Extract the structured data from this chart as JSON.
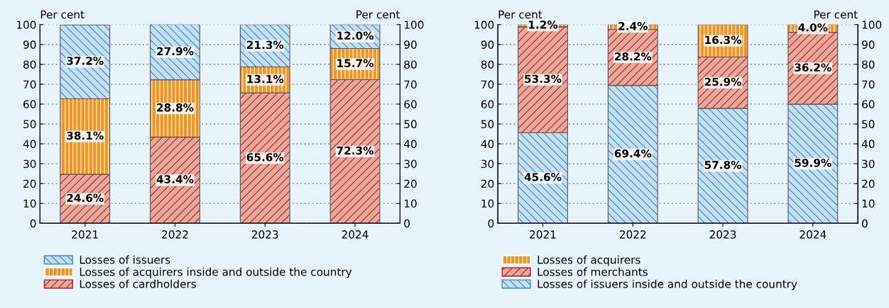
{
  "chart_data": [
    {
      "type": "bar",
      "stacked": true,
      "categories": [
        "2021",
        "2022",
        "2023",
        "2024"
      ],
      "ylabel": "Per cent",
      "y2label": "Per cent",
      "ylim": [
        0,
        100
      ],
      "yticks": [
        0,
        10,
        20,
        30,
        40,
        50,
        60,
        70,
        80,
        90,
        100
      ],
      "y2lim": [
        0,
        100
      ],
      "y2ticks": [
        0,
        10,
        20,
        30,
        40,
        50,
        60,
        70,
        80,
        90,
        100
      ],
      "grid": "y",
      "legend": "bottom",
      "series": [
        {
          "name": "Losses of cardholders",
          "color": "#e8a89a",
          "values": [
            24.6,
            43.4,
            65.6,
            72.3
          ],
          "value_labels": [
            "24.6%",
            "43.4%",
            "65.6%",
            "72.3%"
          ]
        },
        {
          "name": "Losses of acquirers inside and outside the country",
          "color": "#f7941d",
          "values": [
            38.1,
            28.8,
            13.1,
            15.7
          ],
          "value_labels": [
            "38.1%",
            "28.8%",
            "13.1%",
            "15.7%"
          ]
        },
        {
          "name": "Losses of issuers",
          "color": "#c5dff2",
          "values": [
            37.2,
            27.9,
            21.3,
            12.0
          ],
          "value_labels": [
            "37.2%",
            "27.9%",
            "21.3%",
            "12.0%"
          ]
        }
      ]
    },
    {
      "type": "bar",
      "stacked": true,
      "categories": [
        "2021",
        "2022",
        "2023",
        "2024"
      ],
      "ylabel": "Per cent",
      "y2label": "Per cent",
      "ylim": [
        0,
        100
      ],
      "yticks": [
        0,
        10,
        20,
        30,
        40,
        50,
        60,
        70,
        80,
        90,
        100
      ],
      "y2lim": [
        0,
        100
      ],
      "y2ticks": [
        0,
        10,
        20,
        30,
        40,
        50,
        60,
        70,
        80,
        90,
        100
      ],
      "grid": "y",
      "legend": "bottom",
      "series": [
        {
          "name": "Losses of issuers inside and outside the country",
          "color": "#c5dff2",
          "values": [
            45.6,
            69.4,
            57.8,
            59.9
          ],
          "value_labels": [
            "45.6%",
            "69.4%",
            "57.8%",
            "59.9%"
          ]
        },
        {
          "name": "Losses of merchants",
          "color": "#e8a89a",
          "values": [
            53.3,
            28.2,
            25.9,
            36.2
          ],
          "value_labels": [
            "53.3%",
            "28.2%",
            "25.9%",
            "36.2%"
          ]
        },
        {
          "name": "Losses of acquirers",
          "color": "#f7941d",
          "values": [
            1.2,
            2.4,
            16.3,
            4.0
          ],
          "value_labels": [
            "1.2%",
            "2.4%",
            "16.3%",
            "4.0%"
          ]
        }
      ]
    }
  ]
}
